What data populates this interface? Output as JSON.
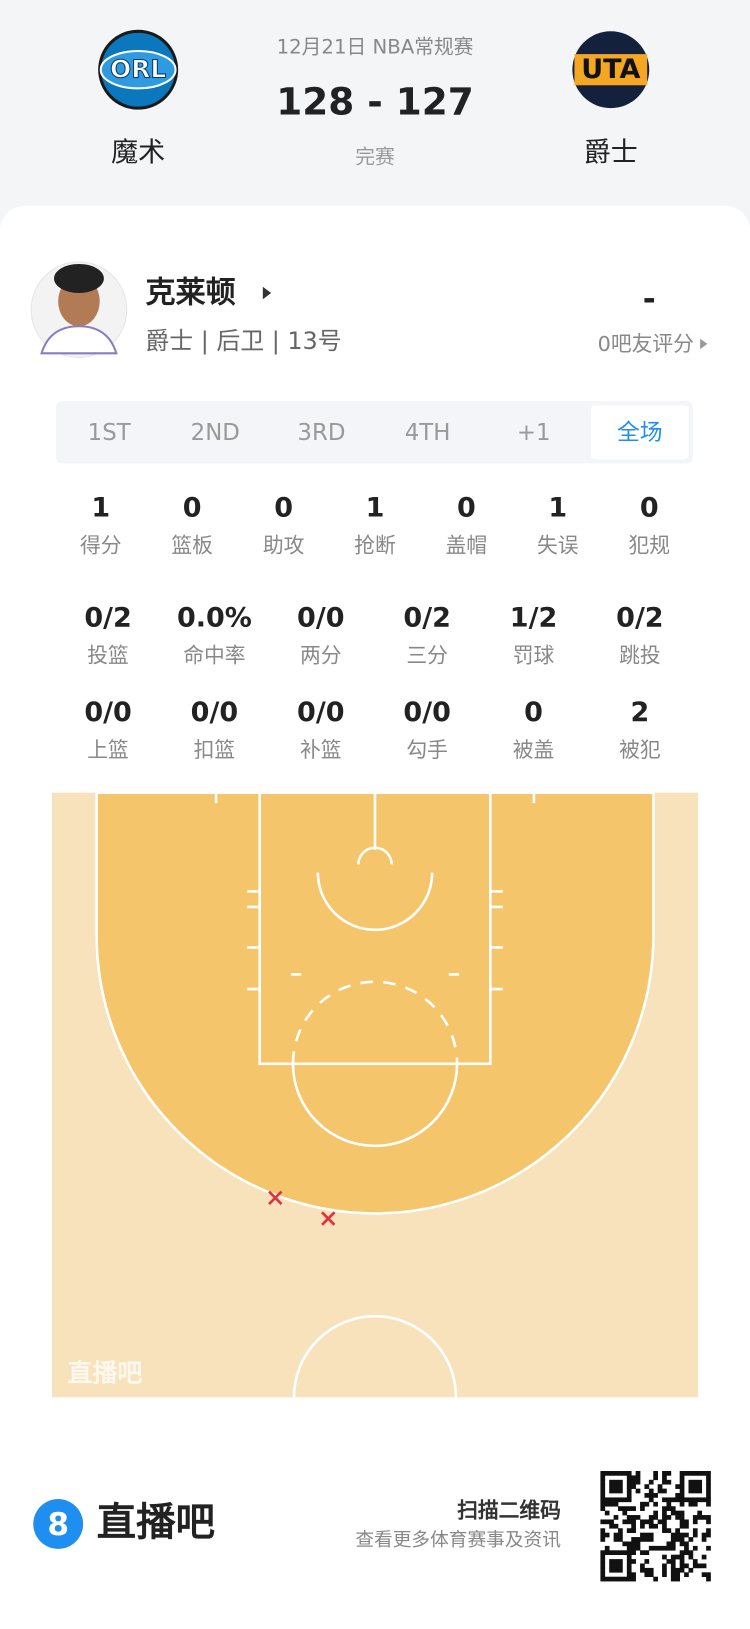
{
  "header": {
    "date": "12月21日 NBA常规赛",
    "score": "128 - 127",
    "status": "完赛",
    "home": {
      "logo": "ORL",
      "name": "魔术"
    },
    "away": {
      "logo": "UTA",
      "name": "爵士"
    }
  },
  "player": {
    "name": "克莱顿",
    "info": "爵士 | 后卫 | 13号",
    "rating": "-",
    "rating_label": "0吧友评分"
  },
  "tabs": [
    "1ST",
    "2ND",
    "3RD",
    "4TH",
    "+1",
    "全场"
  ],
  "active_tab": 5,
  "stats": [
    [
      {
        "value": "1",
        "label": "得分"
      },
      {
        "value": "0",
        "label": "篮板"
      },
      {
        "value": "0",
        "label": "助攻"
      },
      {
        "value": "1",
        "label": "抢断"
      },
      {
        "value": "0",
        "label": "盖帽"
      },
      {
        "value": "1",
        "label": "失误"
      },
      {
        "value": "0",
        "label": "犯规"
      }
    ],
    [
      {
        "value": "0/2",
        "label": "投篮"
      },
      {
        "value": "0.0%",
        "label": "命中率"
      },
      {
        "value": "0/0",
        "label": "两分"
      },
      {
        "value": "0/2",
        "label": "三分"
      },
      {
        "value": "1/2",
        "label": "罚球"
      },
      {
        "value": "0/2",
        "label": "跳投"
      }
    ],
    [
      {
        "value": "0/0",
        "label": "上篮"
      },
      {
        "value": "0/0",
        "label": "扣篮"
      },
      {
        "value": "0/0",
        "label": "补篮"
      },
      {
        "value": "0/0",
        "label": "勾手"
      },
      {
        "value": "0",
        "label": "被盖"
      },
      {
        "value": "2",
        "label": "被犯"
      }
    ]
  ],
  "court": {
    "watermark": "直播吧"
  },
  "footer": {
    "logo": "8",
    "brand": "直播吧",
    "scan": "扫描二维码",
    "subtitle": "查看更多体育赛事及资讯"
  }
}
